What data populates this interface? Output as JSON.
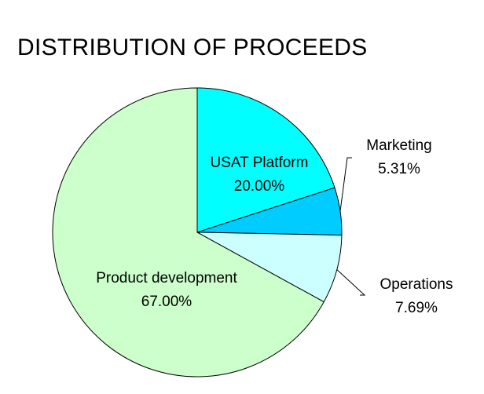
{
  "chart_data": {
    "type": "pie",
    "title": "DISTRIBUTION OF PROCEEDS",
    "slices": [
      {
        "label": "USAT Platform",
        "value": 20.0,
        "value_label": "20.00%",
        "color": "#00ffff"
      },
      {
        "label": "Marketing",
        "value": 5.31,
        "value_label": "5.31%",
        "color": "#00ccff"
      },
      {
        "label": "Operations",
        "value": 7.69,
        "value_label": "7.69%",
        "color": "#ccffff"
      },
      {
        "label": "Product development",
        "value": 67.0,
        "value_label": "67.00%",
        "color": "#ccffcc"
      }
    ],
    "start_angle": "12 o'clock",
    "direction": "clockwise",
    "legend": "none"
  }
}
